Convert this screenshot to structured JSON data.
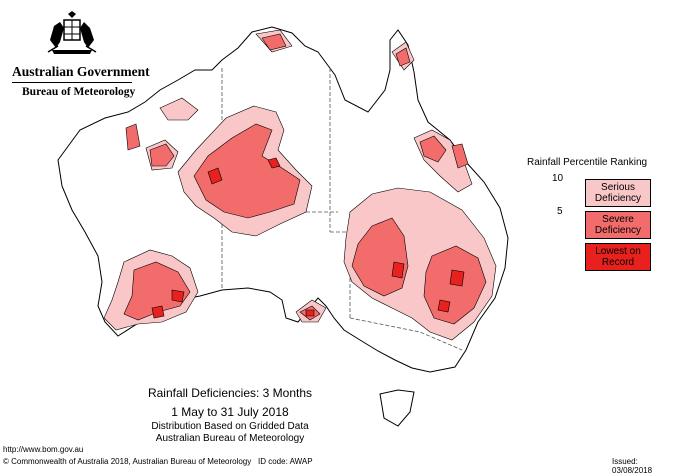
{
  "header": {
    "government": "Australian Government",
    "agency": "Bureau of Meteorology"
  },
  "legend": {
    "title": "Rainfall Percentile Ranking",
    "ticks": [
      "10",
      "5"
    ],
    "items": [
      {
        "label_line1": "Serious",
        "label_line2": "Deficiency",
        "color": "#f9c7c7"
      },
      {
        "label_line1": "Severe",
        "label_line2": "Deficiency",
        "color": "#f26c6c"
      },
      {
        "label_line1": "Lowest on",
        "label_line2": "Record",
        "color": "#e8201e"
      }
    ]
  },
  "caption": {
    "title": "Rainfall Deficiencies: 3 Months",
    "dates": "1 May to 31 July 2018",
    "line1": "Distribution Based on Gridded Data",
    "line2": "Australian Bureau of Meteorology"
  },
  "footer": {
    "url": "http://www.bom.gov.au",
    "copyright": "© Commonwealth of Australia 2018, Australian Bureau of Meteorology",
    "id_code": "ID code: AWAP",
    "issued": "Issued: 03/08/2018"
  },
  "map_colors": {
    "serious": "#f9c7c7",
    "severe": "#f26c6c",
    "lowest": "#e8201e",
    "outline": "#000000"
  }
}
